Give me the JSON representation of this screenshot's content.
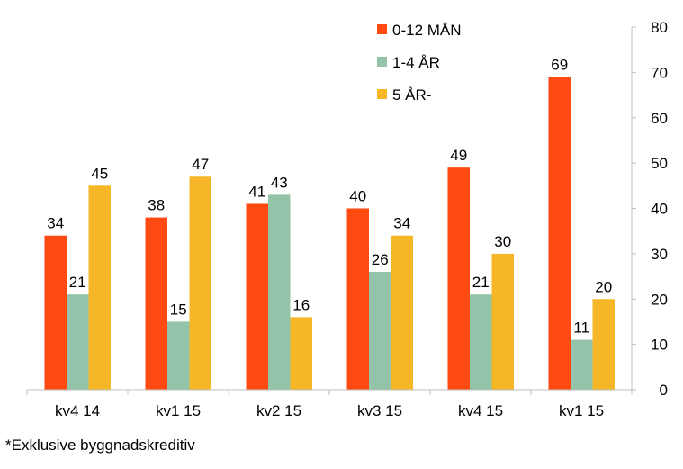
{
  "chart_data": {
    "type": "bar",
    "categories": [
      "kv4 14",
      "kv1 15",
      "kv2 15",
      "kv3 15",
      "kv4 15",
      "kv1 15"
    ],
    "series": [
      {
        "name": "0-12 MÅN",
        "color": "#FF4A12",
        "values": [
          34,
          38,
          41,
          40,
          49,
          69
        ]
      },
      {
        "name": "1-4 ÅR",
        "color": "#93C4A9",
        "values": [
          21,
          15,
          43,
          26,
          21,
          11
        ]
      },
      {
        "name": "5 ÅR-",
        "color": "#F5B727",
        "values": [
          45,
          47,
          16,
          34,
          30,
          20
        ]
      }
    ],
    "ylim": [
      0,
      80
    ],
    "yticks": [
      0,
      10,
      20,
      30,
      40,
      50,
      60,
      70,
      80
    ],
    "yaxis_position": "right",
    "grid": false,
    "legend_position": "top-right",
    "data_labels": true
  },
  "footnote": "*Exklusive byggnadskreditiv"
}
